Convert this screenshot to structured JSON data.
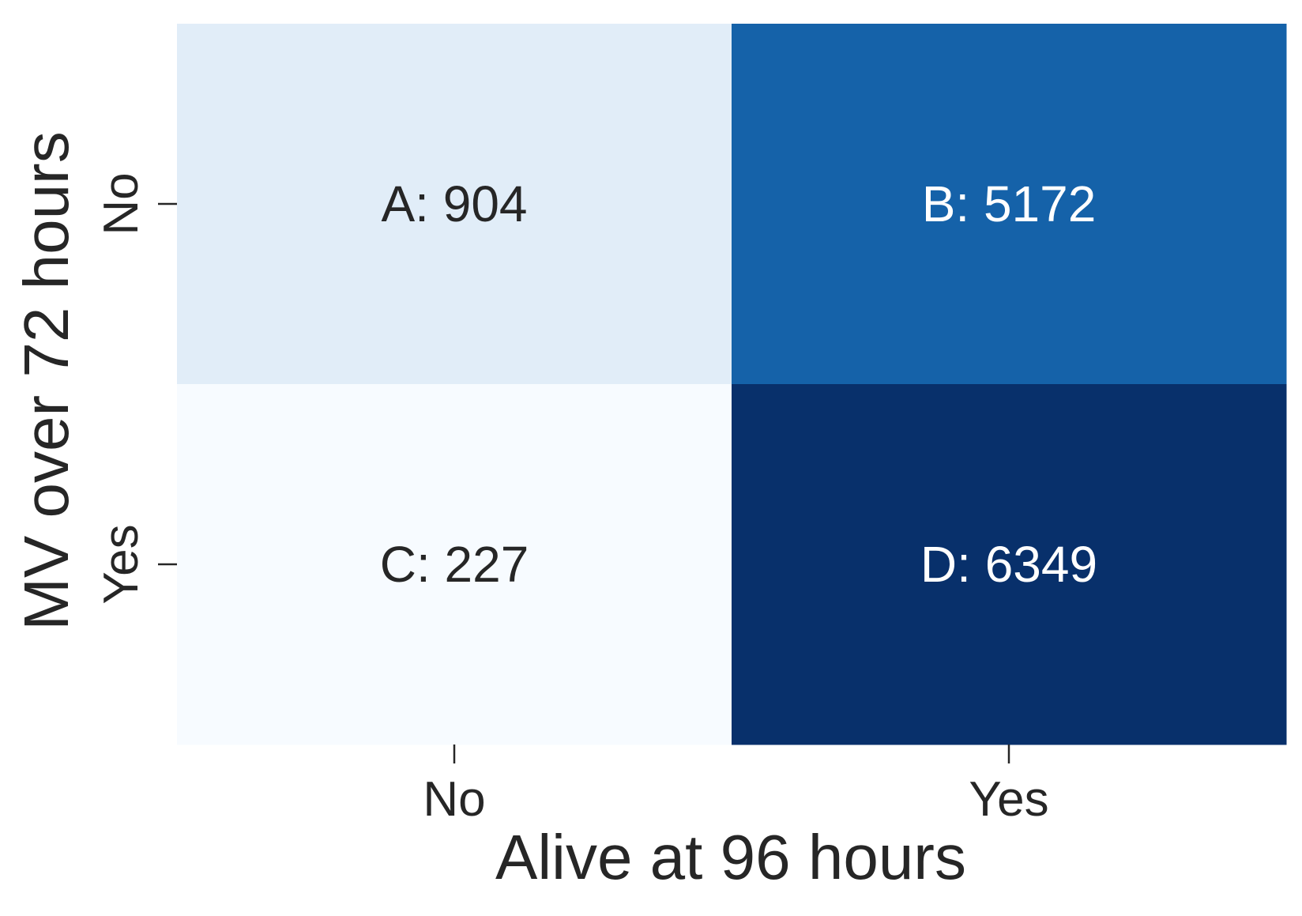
{
  "chart_data": {
    "type": "heatmap",
    "title": "",
    "xlabel": "Alive at 96 hours",
    "ylabel": "MV over 72 hours",
    "x_categories": [
      "No",
      "Yes"
    ],
    "y_categories": [
      "No",
      "Yes"
    ],
    "cells": [
      [
        {
          "label": "A",
          "value": 904
        },
        {
          "label": "B",
          "value": 5172
        }
      ],
      [
        {
          "label": "C",
          "value": 227
        },
        {
          "label": "D",
          "value": 6349
        }
      ]
    ],
    "colormap": "Blues",
    "colors": {
      "low": "#f7fbff",
      "high": "#08306b",
      "text_dark": "#262626",
      "text_light": "#ffffff"
    },
    "grid": false,
    "colorbar": false
  }
}
